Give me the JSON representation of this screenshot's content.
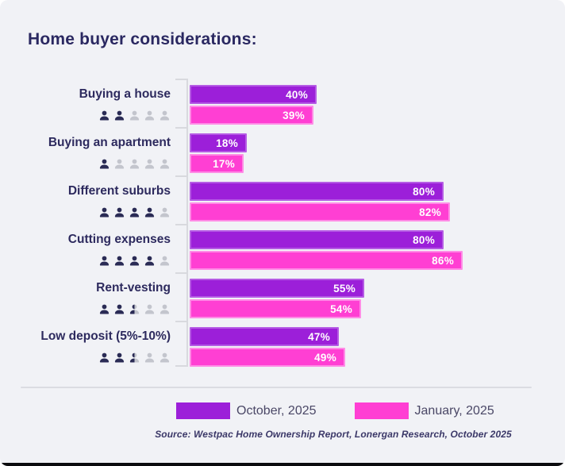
{
  "title": "Home buyer considerations:",
  "chart_data": {
    "type": "bar",
    "orientation": "horizontal",
    "unit": "%",
    "xlim": [
      0,
      100
    ],
    "grid": false,
    "legend_position": "bottom",
    "categories": [
      "Buying a house",
      "Buying an apartment",
      "Different suburbs",
      "Cutting expenses",
      "Rent-vesting",
      "Low deposit (5%-10%)"
    ],
    "series": [
      {
        "name": "October, 2025",
        "color": "#9C1FD9",
        "values": [
          40,
          18,
          80,
          80,
          55,
          47
        ]
      },
      {
        "name": "January, 2025",
        "color": "#FF3FD3",
        "values": [
          39,
          17,
          82,
          86,
          54,
          49
        ]
      }
    ],
    "person_icons": [
      [
        "filled",
        "filled",
        "empty",
        "empty",
        "empty"
      ],
      [
        "filled",
        "empty",
        "empty",
        "empty",
        "empty"
      ],
      [
        "filled",
        "filled",
        "filled",
        "filled",
        "empty"
      ],
      [
        "filled",
        "filled",
        "filled",
        "filled",
        "empty"
      ],
      [
        "filled",
        "filled",
        "half",
        "empty",
        "empty"
      ],
      [
        "filled",
        "filled",
        "half",
        "empty",
        "empty"
      ]
    ]
  },
  "legend": {
    "items": [
      {
        "label": "October, 2025",
        "color": "#9C1FD9"
      },
      {
        "label": "January, 2025",
        "color": "#FF3FD3"
      }
    ]
  },
  "source": "Source: Westpac Home Ownership Report, Lonergan Research, October 2025",
  "colors": {
    "background": "#F1F2F6",
    "title_text": "#2A2861",
    "category_text": "#2D2A5E",
    "icon_filled": "#2A2B55",
    "icon_empty": "#C3C5CD",
    "axis_line": "#D8D9DE",
    "bar_october": "#9C1FD9",
    "bar_october_border": "#B55BE4",
    "bar_january": "#FF3FD3",
    "bar_january_border": "#FF8BE6",
    "value_text": "#FFFFFF"
  }
}
